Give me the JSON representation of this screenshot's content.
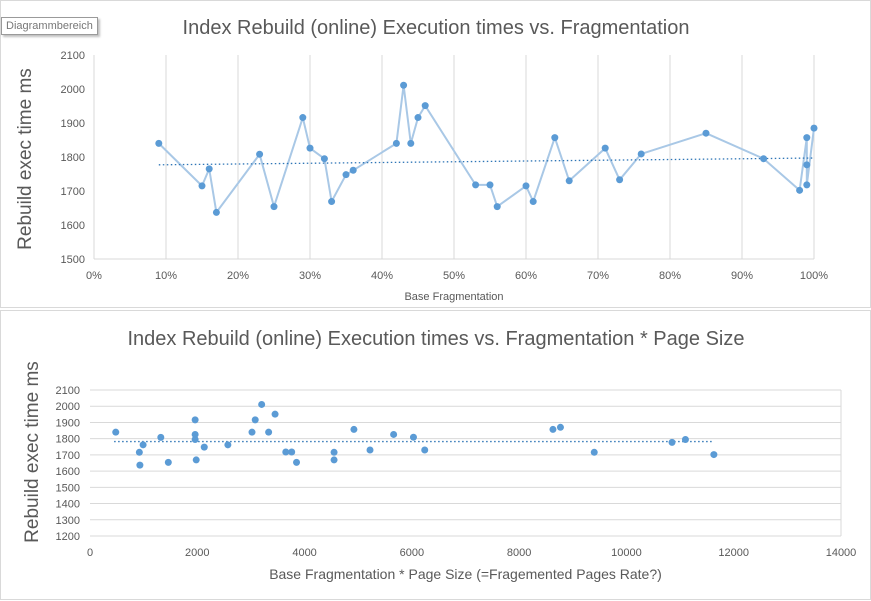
{
  "tooltip": "Diagrammbereich",
  "colors": {
    "line": "#a9c8e6",
    "marker": "#5b9bd5",
    "trend": "#2e75b6",
    "grid": "#d9d9d9",
    "text": "#595959"
  },
  "chart_data": [
    {
      "type": "line",
      "title": "Index Rebuild (online) Execution times vs. Fragmentation",
      "xlabel": "Base Fragmentation",
      "ylabel": "Rebuild exec time ms",
      "xlim": [
        0,
        1
      ],
      "ylim": [
        1500,
        2100
      ],
      "xticks": [
        "0%",
        "10%",
        "20%",
        "30%",
        "40%",
        "50%",
        "60%",
        "70%",
        "80%",
        "90%",
        "100%"
      ],
      "yticks": [
        "1500",
        "1600",
        "1700",
        "1800",
        "1900",
        "2000",
        "2100"
      ],
      "trendline": {
        "style": "dotted-linear",
        "from": [
          0.09,
          1777
        ],
        "to": [
          1.0,
          1797
        ]
      },
      "grid": "vertical",
      "points": [
        [
          0.09,
          1840
        ],
        [
          0.15,
          1715
        ],
        [
          0.16,
          1765
        ],
        [
          0.17,
          1637
        ],
        [
          0.23,
          1808
        ],
        [
          0.25,
          1654
        ],
        [
          0.29,
          1916
        ],
        [
          0.3,
          1826
        ],
        [
          0.32,
          1795
        ],
        [
          0.33,
          1669
        ],
        [
          0.35,
          1748
        ],
        [
          0.36,
          1761
        ],
        [
          0.42,
          1840
        ],
        [
          0.43,
          2011
        ],
        [
          0.44,
          1840
        ],
        [
          0.45,
          1916
        ],
        [
          0.46,
          1951
        ],
        [
          0.53,
          1718
        ],
        [
          0.55,
          1718
        ],
        [
          0.56,
          1654
        ],
        [
          0.6,
          1715
        ],
        [
          0.61,
          1669
        ],
        [
          0.64,
          1857
        ],
        [
          0.66,
          1730
        ],
        [
          0.71,
          1826
        ],
        [
          0.73,
          1733
        ],
        [
          0.76,
          1809
        ],
        [
          0.85,
          1870
        ],
        [
          0.93,
          1795
        ],
        [
          0.98,
          1702
        ],
        [
          0.99,
          1857
        ],
        [
          0.99,
          1777
        ],
        [
          0.99,
          1718
        ],
        [
          1.0,
          1885
        ]
      ]
    },
    {
      "type": "scatter",
      "title": "Index Rebuild (online) Execution times vs. Fragmentation * Page Size",
      "xlabel": "Base Fragmentation * Page Size (=Fragemented Pages Rate?)",
      "ylabel": "Rebuild exec time ms",
      "xlim": [
        0,
        14000
      ],
      "ylim": [
        1200,
        2100
      ],
      "xticks": [
        "0",
        "2000",
        "4000",
        "6000",
        "8000",
        "10000",
        "12000",
        "14000"
      ],
      "yticks": [
        "1200",
        "1300",
        "1400",
        "1500",
        "1600",
        "1700",
        "1800",
        "1900",
        "2000",
        "2100"
      ],
      "trendline": {
        "style": "dotted-linear",
        "from": [
          450,
          1782
        ],
        "to": [
          11600,
          1782
        ]
      },
      "grid": "horizontal",
      "points": [
        [
          480,
          1840
        ],
        [
          920,
          1716
        ],
        [
          930,
          1637
        ],
        [
          990,
          1762
        ],
        [
          1320,
          1808
        ],
        [
          1460,
          1654
        ],
        [
          1960,
          1916
        ],
        [
          1960,
          1826
        ],
        [
          1960,
          1795
        ],
        [
          1980,
          1669
        ],
        [
          2130,
          1748
        ],
        [
          2570,
          1762
        ],
        [
          3020,
          1840
        ],
        [
          3080,
          1916
        ],
        [
          3200,
          2011
        ],
        [
          3330,
          1840
        ],
        [
          3450,
          1951
        ],
        [
          3650,
          1718
        ],
        [
          3760,
          1718
        ],
        [
          3850,
          1654
        ],
        [
          4550,
          1716
        ],
        [
          4550,
          1669
        ],
        [
          4920,
          1857
        ],
        [
          5220,
          1730
        ],
        [
          5660,
          1826
        ],
        [
          6030,
          1809
        ],
        [
          6240,
          1730
        ],
        [
          8630,
          1857
        ],
        [
          8770,
          1870
        ],
        [
          9400,
          1716
        ],
        [
          10850,
          1777
        ],
        [
          11100,
          1795
        ],
        [
          11630,
          1702
        ]
      ]
    }
  ]
}
